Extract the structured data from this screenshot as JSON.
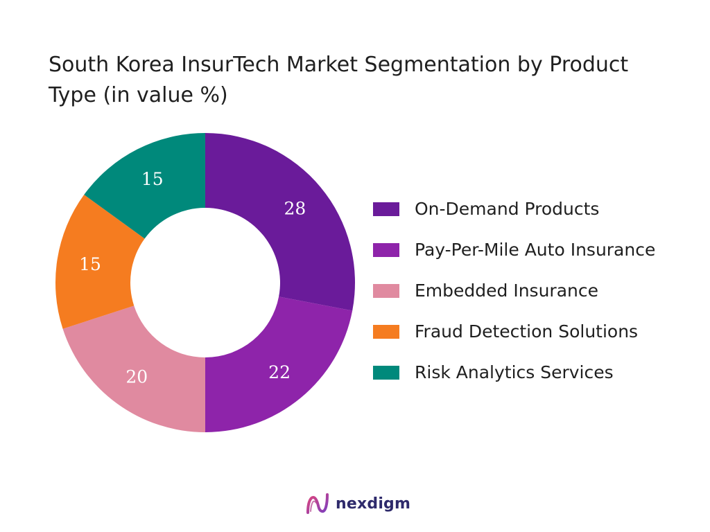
{
  "chart_data": {
    "type": "pie",
    "variant": "donut",
    "title": "South Korea InsurTech Market Segmentation by Product Type (in value %)",
    "categories": [
      "On-Demand Products",
      "Pay-Per-Mile Auto Insurance",
      "Embedded Insurance",
      "Fraud Detection Solutions",
      "Risk Analytics Services"
    ],
    "values": [
      28,
      22,
      20,
      15,
      15
    ],
    "colors": [
      "#6a1b9a",
      "#8e24aa",
      "#e08aa0",
      "#f57c20",
      "#00897b"
    ],
    "legend_position": "right"
  },
  "branding": {
    "name": "nexdigm"
  }
}
